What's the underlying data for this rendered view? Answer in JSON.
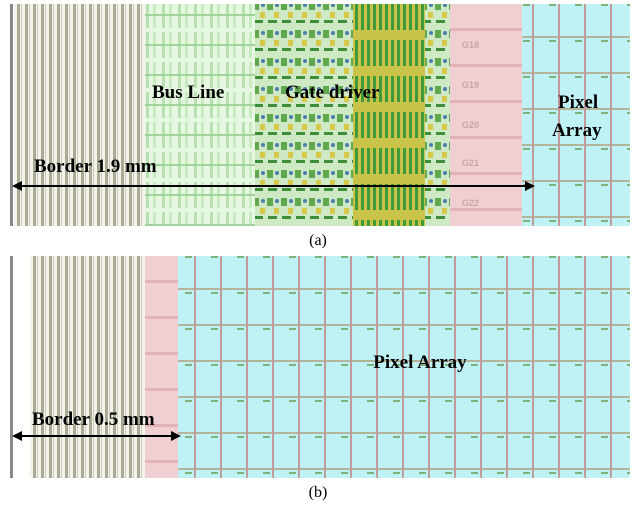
{
  "panels": [
    {
      "caption": "(a)",
      "bus_label": "Bus Line",
      "driver_label": "Gate driver",
      "pixel_label_lines": [
        "Pixel",
        "Array"
      ],
      "border_label": "Border 1.9 mm",
      "gate_labels": [
        "G18",
        "G19",
        "G20",
        "G21",
        "G22"
      ]
    },
    {
      "caption": "(b)",
      "pixel_label": "Pixel Array",
      "border_label": "Border 0.5 mm"
    }
  ]
}
